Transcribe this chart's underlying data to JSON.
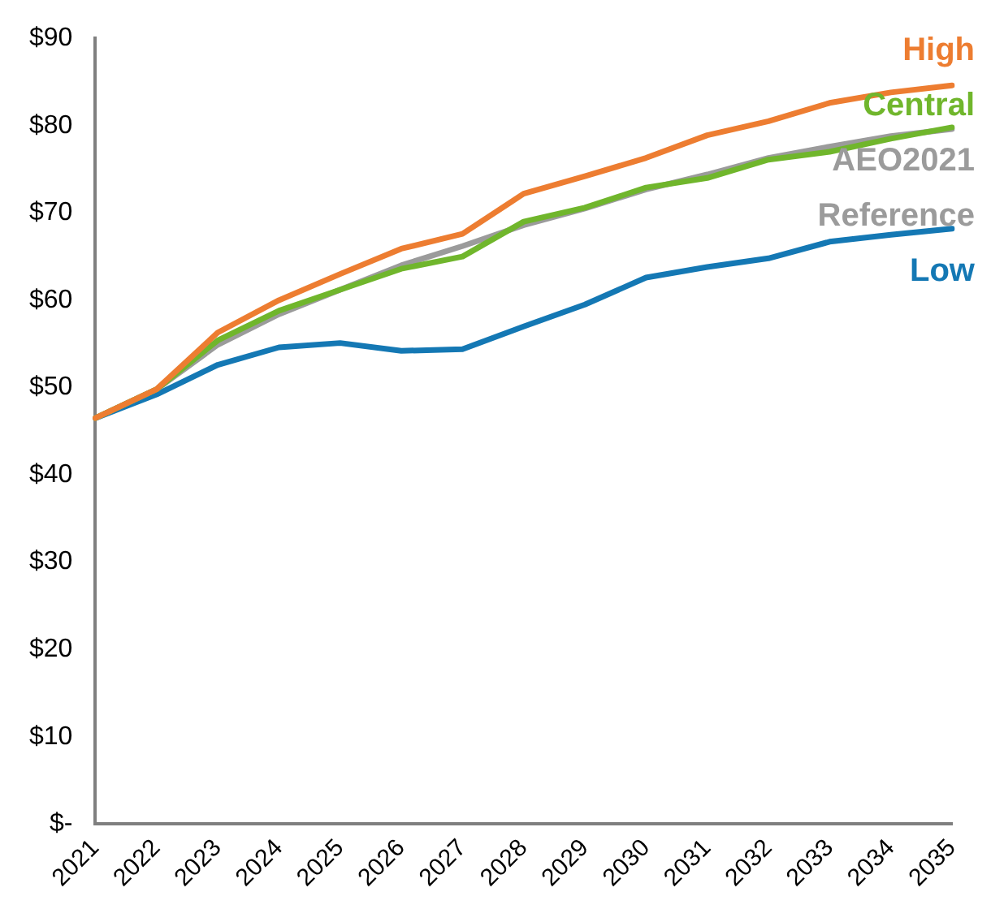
{
  "chart_data": {
    "type": "line",
    "categories": [
      "2021",
      "2022",
      "2023",
      "2024",
      "2025",
      "2026",
      "2027",
      "2028",
      "2029",
      "2030",
      "2031",
      "2032",
      "2033",
      "2034",
      "2035"
    ],
    "series": [
      {
        "name": "High",
        "color": "#ed7d31",
        "values": [
          46.5,
          49.8,
          56.3,
          60,
          63,
          65.9,
          67.6,
          72.2,
          74.2,
          76.3,
          78.9,
          80.5,
          82.6,
          83.8,
          84.6
        ]
      },
      {
        "name": "Central",
        "color": "#70b62c",
        "values": [
          46.5,
          49.8,
          55.4,
          58.8,
          61.2,
          63.6,
          65,
          69,
          70.6,
          72.9,
          74,
          76.1,
          77,
          78.5,
          79.8
        ]
      },
      {
        "name": "AEO2021 Reference",
        "color": "#9b9b9b",
        "values": [
          46.5,
          49.8,
          54.9,
          58.4,
          61.2,
          64,
          66.2,
          68.6,
          70.5,
          72.7,
          74.4,
          76.3,
          77.6,
          78.8,
          79.6
        ]
      },
      {
        "name": "Low",
        "color": "#1478b4",
        "values": [
          46.5,
          49.2,
          52.6,
          54.6,
          55.1,
          54.2,
          54.4,
          57,
          59.5,
          62.6,
          63.8,
          64.8,
          66.7,
          67.5,
          68.2
        ]
      }
    ],
    "ylim": [
      0,
      90
    ],
    "yticks": [
      {
        "value": 0,
        "label": "$-"
      },
      {
        "value": 10,
        "label": "$10"
      },
      {
        "value": 20,
        "label": "$20"
      },
      {
        "value": 30,
        "label": "$30"
      },
      {
        "value": 40,
        "label": "$40"
      },
      {
        "value": 50,
        "label": "$50"
      },
      {
        "value": 60,
        "label": "$60"
      },
      {
        "value": 70,
        "label": "$70"
      },
      {
        "value": 80,
        "label": "$80"
      },
      {
        "value": 90,
        "label": "$90"
      }
    ],
    "grid": false,
    "legend": false,
    "marker": "none",
    "line_style": "solid"
  }
}
